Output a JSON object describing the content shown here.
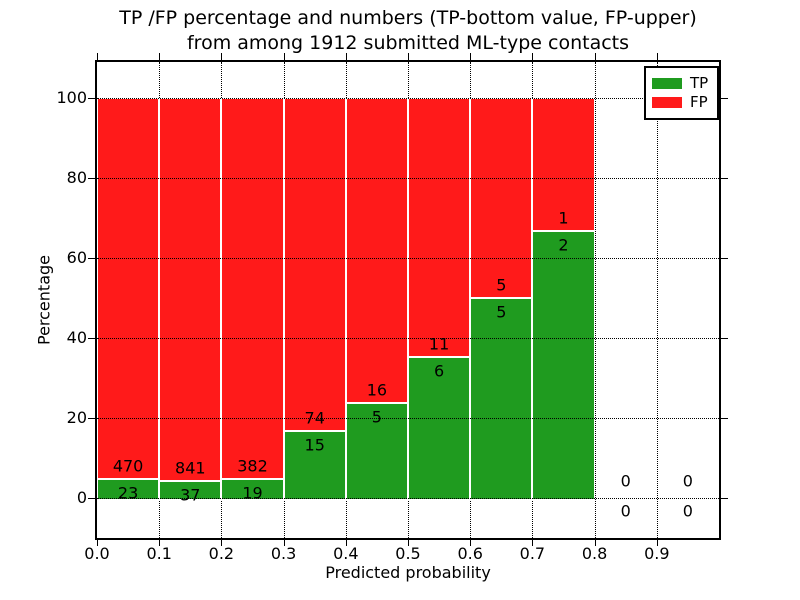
{
  "chart_data": {
    "type": "bar",
    "stacked": true,
    "title_line1": "TP /FP percentage and numbers (TP-bottom value, FP-upper)",
    "title_line2": "from among 1912 submitted ML-type contacts",
    "xlabel": "Predicted probability",
    "ylabel": "Percentage",
    "x_tick_labels": [
      "0.0",
      "0.1",
      "0.2",
      "0.3",
      "0.4",
      "0.5",
      "0.6",
      "0.7",
      "0.8",
      "0.9"
    ],
    "y_ticks": [
      0,
      20,
      40,
      60,
      80,
      100
    ],
    "xlim": [
      0.0,
      1.0
    ],
    "ylim": [
      -10,
      109
    ],
    "grid": true,
    "grid_style": "dotted",
    "legend_position": "upper right",
    "bar_mode": "percent_stacked_to_100",
    "bin_width": 0.1,
    "bins_x0": [
      0.0,
      0.1,
      0.2,
      0.3,
      0.4,
      0.5,
      0.6,
      0.7,
      0.8,
      0.9
    ],
    "series": [
      {
        "name": "TP",
        "color": "#1f9b1f",
        "counts": [
          23,
          37,
          19,
          15,
          5,
          6,
          5,
          2,
          0,
          0
        ]
      },
      {
        "name": "FP",
        "color": "#ff1a1a",
        "counts": [
          470,
          841,
          382,
          74,
          16,
          11,
          5,
          1,
          0,
          0
        ]
      }
    ],
    "total_label_value": "1912",
    "annotation_note": "TP-bottom value, FP-upper"
  }
}
